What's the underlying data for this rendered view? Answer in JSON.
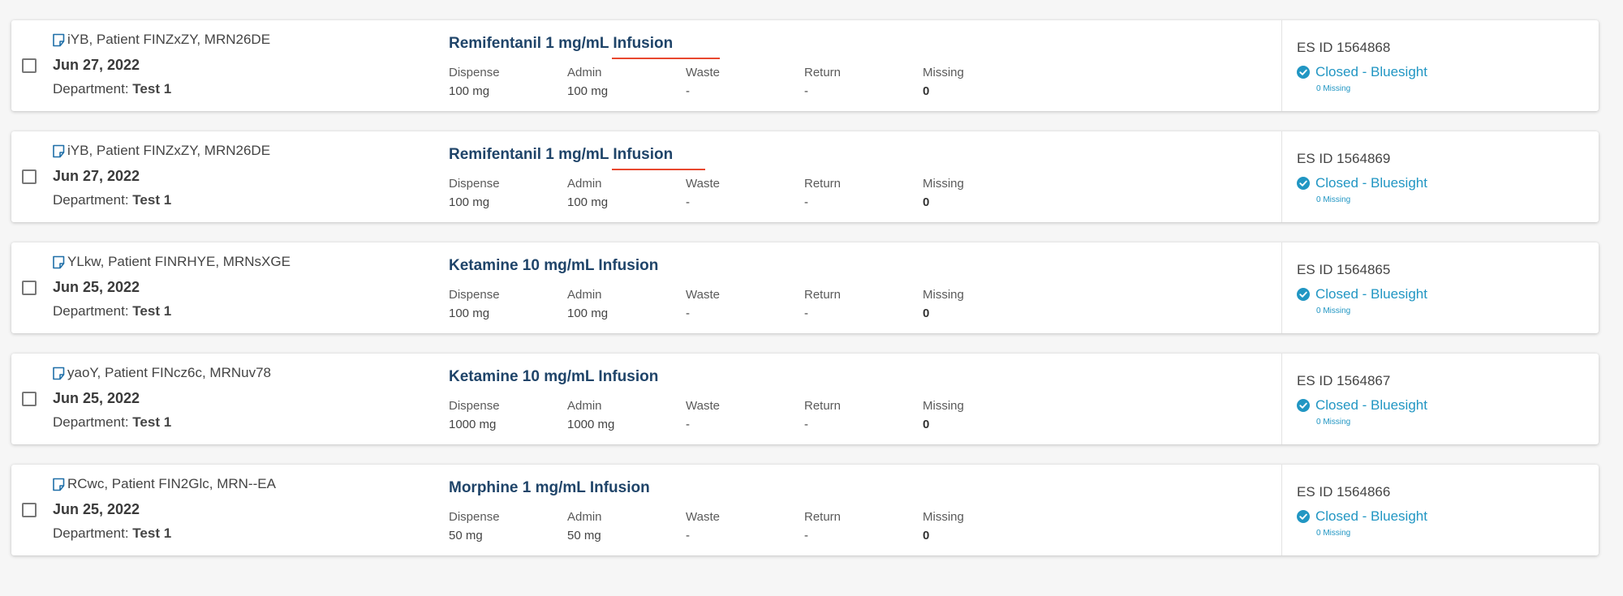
{
  "colors": {
    "accent": "#2196c3",
    "medication_title": "#1f4469",
    "underline": "#e8482f",
    "background": "#f6f6f6"
  },
  "labels": {
    "dispense": "Dispense",
    "admin": "Admin",
    "waste": "Waste",
    "return": "Return",
    "missing": "Missing",
    "department_prefix": "Department:"
  },
  "records": [
    {
      "patient": "iYB, Patient FINZxZY, MRN26DE",
      "date": "Jun 27, 2022",
      "department": "Test 1",
      "medication": "Remifentanil 1 mg/mL Infusion",
      "dispense": "100 mg",
      "admin": "100 mg",
      "waste": "-",
      "return": "-",
      "missing": "0",
      "es_id": "ES ID 1564868",
      "status": "Closed - Bluesight",
      "status_sub": "0 Missing",
      "underline": true
    },
    {
      "patient": "iYB, Patient FINZxZY, MRN26DE",
      "date": "Jun 27, 2022",
      "department": "Test 1",
      "medication": "Remifentanil 1 mg/mL Infusion",
      "dispense": "100 mg",
      "admin": "100 mg",
      "waste": "-",
      "return": "-",
      "missing": "0",
      "es_id": "ES ID 1564869",
      "status": "Closed - Bluesight",
      "status_sub": "0 Missing",
      "underline": true
    },
    {
      "patient": "YLkw, Patient FINRHYE, MRNsXGE",
      "date": "Jun 25, 2022",
      "department": "Test 1",
      "medication": "Ketamine 10 mg/mL Infusion",
      "dispense": "100 mg",
      "admin": "100 mg",
      "waste": "-",
      "return": "-",
      "missing": "0",
      "es_id": "ES ID 1564865",
      "status": "Closed - Bluesight",
      "status_sub": "0 Missing",
      "underline": false
    },
    {
      "patient": "yaoY, Patient FINcz6c, MRNuv78",
      "date": "Jun 25, 2022",
      "department": "Test 1",
      "medication": "Ketamine 10 mg/mL Infusion",
      "dispense": "1000 mg",
      "admin": "1000 mg",
      "waste": "-",
      "return": "-",
      "missing": "0",
      "es_id": "ES ID 1564867",
      "status": "Closed - Bluesight",
      "status_sub": "0 Missing",
      "underline": false
    },
    {
      "patient": "RCwc, Patient FIN2Glc, MRN--EA",
      "date": "Jun 25, 2022",
      "department": "Test 1",
      "medication": "Morphine 1 mg/mL Infusion",
      "dispense": "50 mg",
      "admin": "50 mg",
      "waste": "-",
      "return": "-",
      "missing": "0",
      "es_id": "ES ID 1564866",
      "status": "Closed - Bluesight",
      "status_sub": "0 Missing",
      "underline": false
    }
  ]
}
